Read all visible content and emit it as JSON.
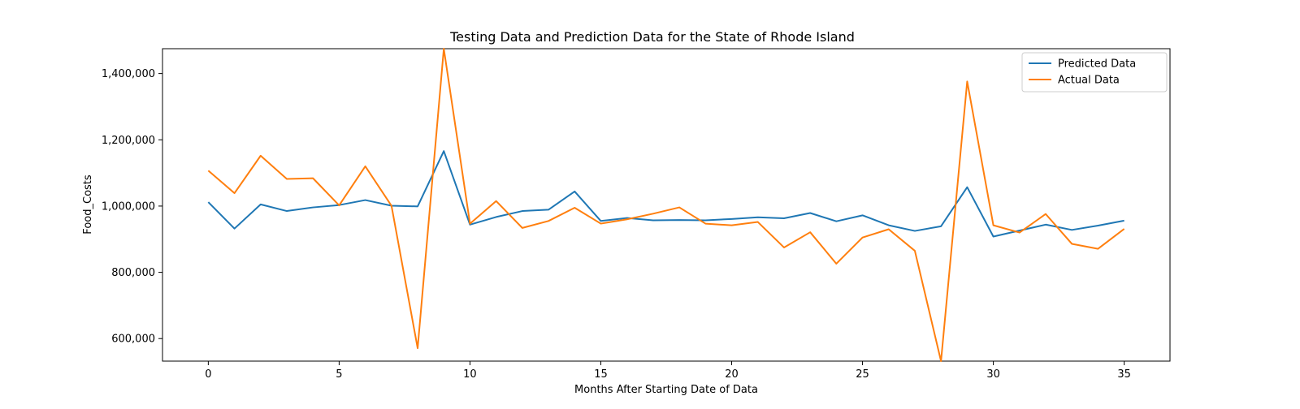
{
  "chart_data": {
    "type": "line",
    "title": "Testing Data and Prediction Data for the State of Rhode Island",
    "xlabel": "Months After Starting Date of Data",
    "ylabel": "Food_Costs",
    "xlim": [
      -1.75,
      36.75
    ],
    "ylim": [
      532000,
      1475000
    ],
    "xticks": [
      0,
      5,
      10,
      15,
      20,
      25,
      30,
      35
    ],
    "xtick_labels": [
      "0",
      "5",
      "10",
      "15",
      "20",
      "25",
      "30",
      "35"
    ],
    "yticks": [
      600000,
      800000,
      1000000,
      1200000,
      1400000
    ],
    "ytick_labels": [
      "600,000",
      "800,000",
      "1,000,000",
      "1,200,000",
      "1,400,000"
    ],
    "grid": false,
    "legend_position": "top-right",
    "x": [
      0,
      1,
      2,
      3,
      4,
      5,
      6,
      7,
      8,
      9,
      10,
      11,
      12,
      13,
      14,
      15,
      16,
      17,
      18,
      19,
      20,
      21,
      22,
      23,
      24,
      25,
      26,
      27,
      28,
      29,
      30,
      31,
      32,
      33,
      34,
      35
    ],
    "series": [
      {
        "name": "Predicted Data",
        "color": "#1f77b4",
        "values": [
          1012000,
          932000,
          1005000,
          985000,
          996000,
          1003000,
          1018000,
          1001000,
          999000,
          1166000,
          944000,
          967000,
          985000,
          989000,
          1044000,
          955000,
          964000,
          957000,
          958000,
          957000,
          961000,
          966000,
          963000,
          979000,
          954000,
          972000,
          942000,
          925000,
          939000,
          1057000,
          908000,
          926000,
          944000,
          928000,
          941000,
          956000
        ]
      },
      {
        "name": "Actual Data",
        "color": "#ff7f0e",
        "values": [
          1107000,
          1039000,
          1152000,
          1082000,
          1084000,
          1002000,
          1120000,
          1001000,
          571000,
          1475000,
          947000,
          1015000,
          934000,
          955000,
          995000,
          947000,
          960000,
          977000,
          996000,
          947000,
          942000,
          952000,
          875000,
          921000,
          826000,
          905000,
          930000,
          865000,
          532000,
          1376000,
          942000,
          920000,
          976000,
          886000,
          871000,
          931000
        ]
      }
    ]
  }
}
